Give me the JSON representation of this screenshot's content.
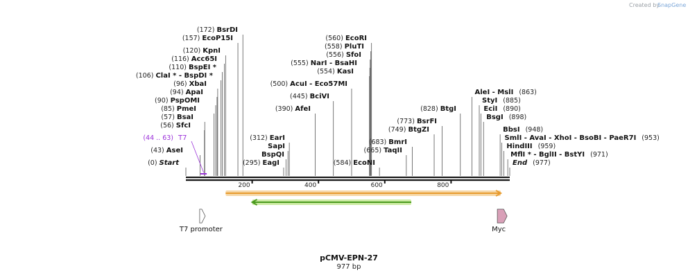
{
  "watermark": {
    "prefix": "Created by",
    "brand": "SnapGene"
  },
  "plasmid": {
    "name": "pCMV-EPN-27",
    "length_label": "977 bp",
    "length": 977
  },
  "axis_ticks": [
    {
      "pos": 200,
      "label": "200"
    },
    {
      "pos": 400,
      "label": "400"
    },
    {
      "pos": 600,
      "label": "600"
    },
    {
      "pos": 800,
      "label": "800"
    }
  ],
  "sites": [
    {
      "pos": 0,
      "num": "(0)",
      "names": [
        "Start"
      ],
      "italic": true
    },
    {
      "pos": 43,
      "num": "(43)",
      "names": [
        "AseI"
      ]
    },
    {
      "pos": 56,
      "num": "(56)",
      "names": [
        "SfcI"
      ]
    },
    {
      "pos": 57,
      "num": "(57)",
      "names": [
        "BsaI"
      ]
    },
    {
      "pos": 85,
      "num": "(85)",
      "names": [
        "PmeI"
      ]
    },
    {
      "pos": 90,
      "num": "(90)",
      "names": [
        "PspOMI"
      ]
    },
    {
      "pos": 94,
      "num": "(94)",
      "names": [
        "ApaI"
      ]
    },
    {
      "pos": 96,
      "num": "(96)",
      "names": [
        "XbaI"
      ]
    },
    {
      "pos": 106,
      "num": "(106)",
      "names": [
        "ClaI *",
        "BspDI *"
      ]
    },
    {
      "pos": 110,
      "num": "(110)",
      "names": [
        "BspEI *"
      ]
    },
    {
      "pos": 116,
      "num": "(116)",
      "names": [
        "Acc65I"
      ]
    },
    {
      "pos": 120,
      "num": "(120)",
      "names": [
        "KpnI"
      ]
    },
    {
      "pos": 157,
      "num": "(157)",
      "names": [
        "EcoP15I"
      ]
    },
    {
      "pos": 172,
      "num": "(172)",
      "names": [
        "BsrDI"
      ]
    },
    {
      "pos": 295,
      "num": "(295)",
      "names": [
        "EagI"
      ]
    },
    {
      "pos": 302,
      "num": "",
      "names": [
        "BspQI"
      ]
    },
    {
      "pos": 308,
      "num": "",
      "names": [
        "SapI"
      ]
    },
    {
      "pos": 312,
      "num": "(312)",
      "names": [
        "EarI"
      ]
    },
    {
      "pos": 390,
      "num": "(390)",
      "names": [
        "AfeI"
      ]
    },
    {
      "pos": 445,
      "num": "(445)",
      "names": [
        "BciVI"
      ]
    },
    {
      "pos": 500,
      "num": "(500)",
      "names": [
        "AcuI",
        "Eco57MI"
      ]
    },
    {
      "pos": 554,
      "num": "(554)",
      "names": [
        "KasI"
      ]
    },
    {
      "pos": 555,
      "num": "(555)",
      "names": [
        "NarI",
        "BsaHI"
      ]
    },
    {
      "pos": 556,
      "num": "(556)",
      "names": [
        "SfoI"
      ]
    },
    {
      "pos": 558,
      "num": "(558)",
      "names": [
        "PluTI"
      ]
    },
    {
      "pos": 560,
      "num": "(560)",
      "names": [
        "EcoRI"
      ]
    },
    {
      "pos": 584,
      "num": "(584)",
      "names": [
        "EcoNI"
      ]
    },
    {
      "pos": 665,
      "num": "(665)",
      "names": [
        "TaqII"
      ]
    },
    {
      "pos": 683,
      "num": "(683)",
      "names": [
        "BmrI"
      ]
    },
    {
      "pos": 749,
      "num": "(749)",
      "names": [
        "BtgZI"
      ]
    },
    {
      "pos": 773,
      "num": "(773)",
      "names": [
        "BsrFI"
      ]
    },
    {
      "pos": 828,
      "num": "(828)",
      "names": [
        "BtgI"
      ]
    },
    {
      "pos": 863,
      "num": "(863)",
      "names": [
        "AleI",
        "MslI"
      ]
    },
    {
      "pos": 885,
      "num": "(885)",
      "names": [
        "StyI"
      ]
    },
    {
      "pos": 890,
      "num": "(890)",
      "names": [
        "EciI"
      ]
    },
    {
      "pos": 898,
      "num": "(898)",
      "names": [
        "BsgI"
      ]
    },
    {
      "pos": 948,
      "num": "(948)",
      "names": [
        "BbsI"
      ]
    },
    {
      "pos": 953,
      "num": "(953)",
      "names": [
        "SmlI",
        "AvaI",
        "XhoI",
        "BsoBI",
        "PaeR7I"
      ]
    },
    {
      "pos": 959,
      "num": "(959)",
      "names": [
        "HindIII"
      ]
    },
    {
      "pos": 971,
      "num": "(971)",
      "names": [
        "MflI *",
        "BglII",
        "BstYI"
      ]
    },
    {
      "pos": 977,
      "num": "(977)",
      "names": [
        "End"
      ],
      "italic": true
    }
  ],
  "primer": {
    "label": "T7",
    "range": "(44 .. 63)",
    "start": 44,
    "end": 63,
    "color": "#9b30d9"
  },
  "orfs": [
    {
      "start": 120,
      "end": 950,
      "direction": "forward",
      "color": "#e89b2e",
      "fill": "#f6d7a7"
    },
    {
      "start": 200,
      "end": 680,
      "direction": "reverse",
      "color": "#4a9a1e",
      "fill": "#cdeba4"
    }
  ],
  "features": [
    {
      "label": "T7 promoter",
      "pos": 50,
      "direction": "forward",
      "color": "#ffffff"
    },
    {
      "label": "Myc",
      "pos": 948,
      "direction": "forward",
      "color": "#d9a0b8"
    }
  ],
  "colors": {
    "backbone": "#111111",
    "enzyme_line": "#555555"
  }
}
